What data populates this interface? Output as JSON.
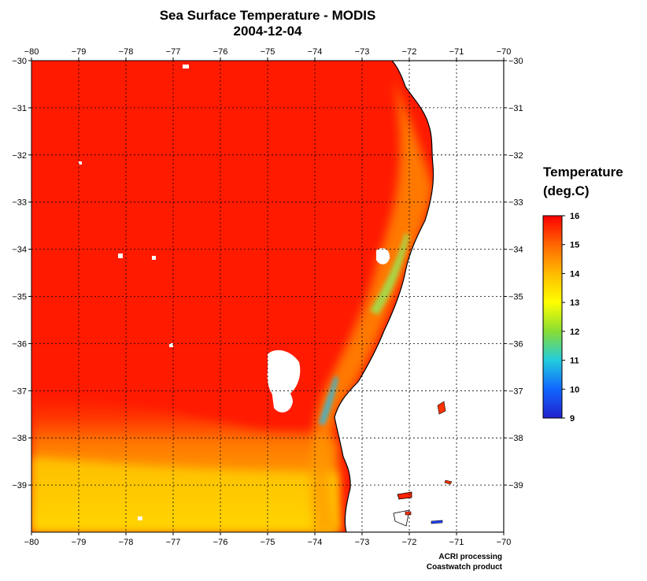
{
  "title": "Sea Surface Temperature - MODIS",
  "date": "2004-12-04",
  "map": {
    "lon_range": [
      -80,
      -70
    ],
    "lat_range": [
      -40,
      -30
    ],
    "lon_ticks": [
      "−80",
      "−79",
      "−78",
      "−77",
      "−76",
      "−75",
      "−74",
      "−73",
      "−72",
      "−71",
      "−70"
    ],
    "lat_ticks": [
      "−30",
      "−31",
      "−32",
      "−33",
      "−34",
      "−35",
      "−36",
      "−37",
      "−38",
      "−39"
    ],
    "grid": "dotted",
    "ocean_color": "#ff1a00",
    "land_color": "#ffffff",
    "coastline_color": "#000000"
  },
  "legend": {
    "title_line1": "Temperature",
    "title_line2": "(deg.C)",
    "labels": [
      "16",
      "15",
      "14",
      "13",
      "12",
      "11",
      "10",
      "9"
    ],
    "min": 9,
    "max": 16,
    "colors": [
      "#ff0000",
      "#ff6600",
      "#ffbb00",
      "#ffff00",
      "#88dd33",
      "#22ccdd",
      "#1166ff",
      "#2222cc"
    ]
  },
  "credit": {
    "line1": "ACRI processing",
    "line2": "Coastwatch product"
  }
}
